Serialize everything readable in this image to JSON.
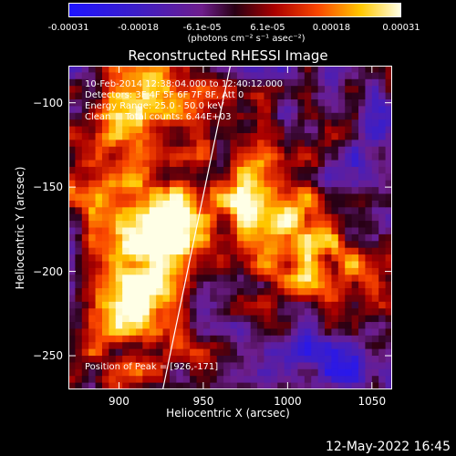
{
  "colorbar": {
    "unit": "(photons cm⁻² s⁻¹ asec⁻²)",
    "ticks": [
      {
        "value": -0.00031,
        "label": "-0.00031"
      },
      {
        "value": -0.00018,
        "label": "-0.00018"
      },
      {
        "value": -6.1e-05,
        "label": "-6.1e-05"
      },
      {
        "value": 6.1e-05,
        "label": "6.1e-05"
      },
      {
        "value": 0.00018,
        "label": "0.00018"
      },
      {
        "value": 0.00031,
        "label": "0.00031"
      }
    ],
    "range": [
      -0.00031,
      0.00031
    ]
  },
  "info": {
    "line1": "10-Feb-2014 12:38:04.000 to 12:40:12.000",
    "line2": "Detectors: 3F 4F 5F 6F 7F 8F, Att 0",
    "line3": "Energy Range: 25.0 - 50.0 keV",
    "line4": "Clean     Total counts: 6.44E+03",
    "peak": "Position of Peak = [926,-171]"
  },
  "footer": "12-May-2022 16:45",
  "colors": {
    "background": "#000000",
    "text": "#ffffff"
  },
  "chart_data": {
    "type": "heatmap",
    "title": "Reconstructed RHESSI Image",
    "xlabel": "Heliocentric X (arcsec)",
    "ylabel": "Heliocentric Y (arcsec)",
    "xlim": [
      870,
      1062
    ],
    "ylim": [
      -270,
      -78
    ],
    "xticks": [
      900,
      950,
      1000,
      1050
    ],
    "yticks": [
      -250,
      -200,
      -150,
      -100
    ],
    "xtick_labels": [
      "900",
      "950",
      "1000",
      "1050"
    ],
    "ytick_labels": [
      "-250",
      "-200",
      "-150",
      "-100"
    ],
    "limb_line": {
      "x": [
        926,
        966
      ],
      "y": [
        -270,
        -78
      ]
    },
    "peak": {
      "x": 926,
      "y": -171
    },
    "hotspots": [
      {
        "x": 917,
        "y": -100,
        "amp": 0.00026
      },
      {
        "x": 926,
        "y": -171,
        "amp": 0.00031
      },
      {
        "x": 912,
        "y": -208,
        "amp": 0.00022
      },
      {
        "x": 900,
        "y": -235,
        "amp": 0.00018
      },
      {
        "x": 985,
        "y": -150,
        "amp": 0.00022
      },
      {
        "x": 1000,
        "y": -195,
        "amp": 0.0002
      },
      {
        "x": 1020,
        "y": -175,
        "amp": 0.00012
      },
      {
        "x": 1053,
        "y": -210,
        "amp": 0.00014
      },
      {
        "x": 888,
        "y": -140,
        "amp": 0.00016
      },
      {
        "x": 1047,
        "y": -148,
        "amp": -0.00012
      },
      {
        "x": 1030,
        "y": -255,
        "amp": -0.0001
      }
    ]
  }
}
